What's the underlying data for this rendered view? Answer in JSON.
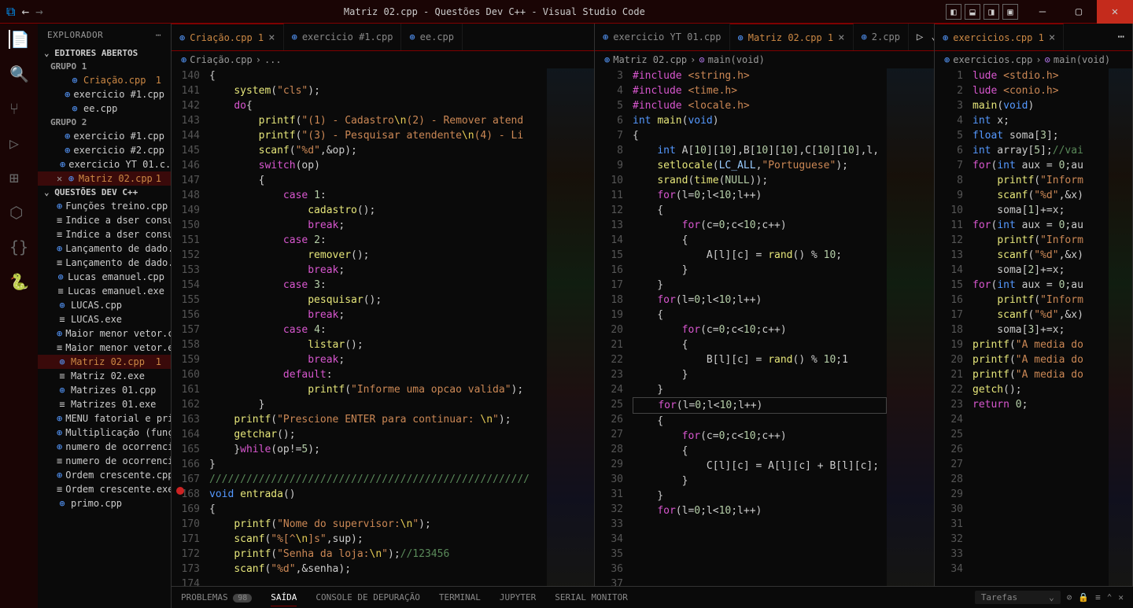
{
  "title": "Matriz 02.cpp - Questões Dev C++ - Visual Studio Code",
  "sidebar": {
    "header": "EXPLORADOR",
    "sections": {
      "open_editors": "EDITORES ABERTOS",
      "group1": "GRUPO 1",
      "group2": "GRUPO 2",
      "workspace": "QUESTÕES DEV C++"
    },
    "g1": [
      {
        "name": "Criação.cpp",
        "mod": true,
        "badge": "1"
      },
      {
        "name": "exercicio #1.cpp"
      },
      {
        "name": "ee.cpp"
      }
    ],
    "g2": [
      {
        "name": "exercicio #1.cpp"
      },
      {
        "name": "exercicio #2.cpp"
      },
      {
        "name": "exercicio YT 01.c..."
      },
      {
        "name": "Matriz 02.cpp",
        "mod": true,
        "badge": "1",
        "sel": true
      }
    ],
    "files": [
      {
        "name": "Funções treino.cpp",
        "icon": "cpp"
      },
      {
        "name": "Indice a dser consulta...",
        "icon": "txt"
      },
      {
        "name": "Indice a dser consulta...",
        "icon": "txt"
      },
      {
        "name": "Lançamento de dado...",
        "icon": "cpp"
      },
      {
        "name": "Lançamento de dado...",
        "icon": "txt"
      },
      {
        "name": "Lucas emanuel.cpp",
        "icon": "cpp"
      },
      {
        "name": "Lucas emanuel.exe",
        "icon": "txt"
      },
      {
        "name": "LUCAS.cpp",
        "icon": "cpp"
      },
      {
        "name": "LUCAS.exe",
        "icon": "txt"
      },
      {
        "name": "Maior menor vetor.cpp",
        "icon": "cpp"
      },
      {
        "name": "Maior menor vetor.exe",
        "icon": "txt"
      },
      {
        "name": "Matriz 02.cpp",
        "icon": "cpp",
        "mod": true,
        "badge": "1",
        "sel": true
      },
      {
        "name": "Matriz 02.exe",
        "icon": "txt"
      },
      {
        "name": "Matrizes 01.cpp",
        "icon": "cpp"
      },
      {
        "name": "Matrizes 01.exe",
        "icon": "txt"
      },
      {
        "name": "MENU fatorial e prim...",
        "icon": "cpp"
      },
      {
        "name": "Multiplicação (funçõe...",
        "icon": "cpp"
      },
      {
        "name": "numero de ocorrenci...",
        "icon": "cpp"
      },
      {
        "name": "numero de ocorrenci...",
        "icon": "txt"
      },
      {
        "name": "Ordem crescente.cpp",
        "icon": "cpp"
      },
      {
        "name": "Ordem crescente.exe",
        "icon": "txt"
      },
      {
        "name": "primo.cpp",
        "icon": "cpp"
      }
    ]
  },
  "tabs": {
    "g1": [
      {
        "label": "Criação.cpp",
        "mod": true,
        "badge": "1",
        "active": true
      },
      {
        "label": "exercicio #1.cpp"
      },
      {
        "label": "ee.cpp"
      }
    ],
    "g2": [
      {
        "label": "exercicio YT 01.cpp"
      },
      {
        "label": "Matriz 02.cpp",
        "mod": true,
        "badge": "1",
        "active": true
      },
      {
        "label": "2.cpp",
        "partial": true
      }
    ],
    "g3": [
      {
        "label": "exercicios.cpp",
        "mod": true,
        "badge": "1",
        "active": true
      }
    ]
  },
  "breadcrumbs": {
    "g1": "Criação.cpp › ...",
    "g2": "Matriz 02.cpp › main(void)",
    "g3": "exercicios.cpp › main(void)"
  },
  "panel": {
    "tabs": [
      "PROBLEMAS",
      "SAÍDA",
      "CONSOLE DE DEPURAÇÃO",
      "TERMINAL",
      "JUPYTER",
      "SERIAL MONITOR"
    ],
    "active": 1,
    "badge": "98",
    "tasks": "Tarefas"
  },
  "code1": {
    "start": 140,
    "breakpoint": 168
  }
}
